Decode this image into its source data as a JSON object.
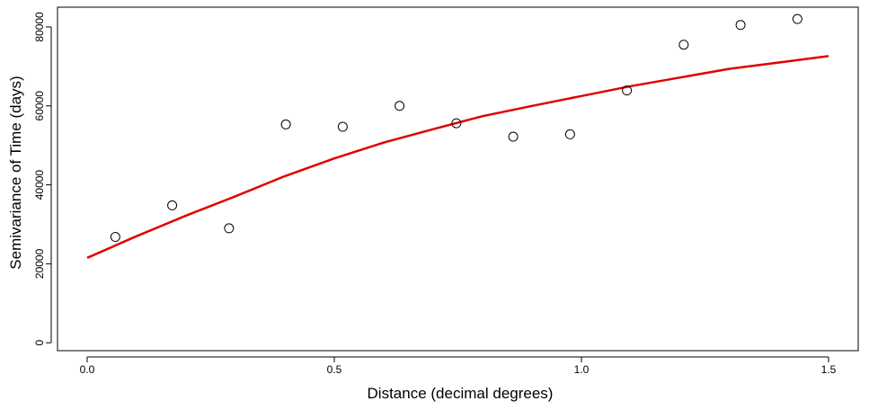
{
  "chart_data": {
    "type": "scatter",
    "title": "",
    "xlabel": "Distance (decimal degrees)",
    "ylabel": "Semivariance of Time (days)",
    "xlim": [
      -0.06,
      1.56
    ],
    "ylim": [
      -2000,
      85000
    ],
    "xticks": [
      0.0,
      0.5,
      1.0,
      1.5
    ],
    "xtick_labels": [
      "0.0",
      "0.5",
      "1.0",
      "1.5"
    ],
    "yticks": [
      0,
      20000,
      40000,
      60000,
      80000
    ],
    "ytick_labels": [
      "0",
      "20000",
      "40000",
      "60000",
      "80000"
    ],
    "grid": false,
    "legend": "none",
    "series": [
      {
        "kind": "points",
        "marker": "open-circle",
        "color": "#000000",
        "x": [
          0.057,
          0.172,
          0.287,
          0.402,
          0.517,
          0.632,
          0.747,
          0.862,
          0.977,
          1.092,
          1.207,
          1.322,
          1.437
        ],
        "y": [
          26800,
          34800,
          29000,
          55300,
          54700,
          60000,
          55600,
          52200,
          52800,
          63900,
          75500,
          80500,
          82000
        ]
      },
      {
        "kind": "line",
        "color": "#e00000",
        "x": [
          0.0,
          0.1,
          0.2,
          0.3,
          0.4,
          0.5,
          0.6,
          0.7,
          0.8,
          0.9,
          1.0,
          1.1,
          1.2,
          1.3,
          1.4,
          1.5
        ],
        "y": [
          21500,
          27000,
          32200,
          37100,
          42200,
          46700,
          50700,
          54100,
          57400,
          60000,
          62500,
          65000,
          67200,
          69400,
          71000,
          72600
        ]
      }
    ]
  }
}
